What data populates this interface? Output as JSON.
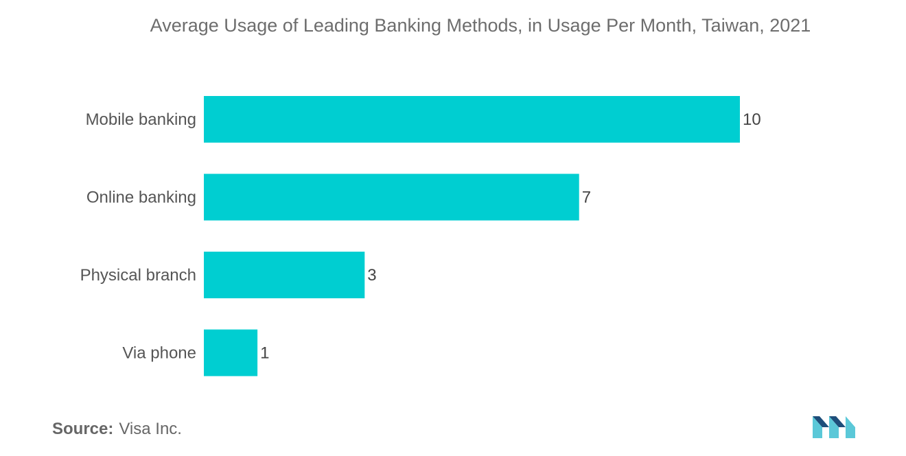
{
  "chart_data": {
    "type": "bar",
    "orientation": "horizontal",
    "title": "Average Usage of Leading Banking Methods, in Usage Per Month, Taiwan, 2021",
    "categories": [
      "Mobile banking",
      "Online banking",
      "Physical branch",
      "Via phone"
    ],
    "values": [
      10,
      7,
      3,
      1
    ],
    "xlim": [
      0,
      10
    ],
    "grid": false,
    "legend": "none",
    "bar_color": "#00CED1"
  },
  "source": {
    "label": "Source:",
    "value": "Visa Inc."
  },
  "logo": {
    "icon": "mordor-intelligence-logo-icon",
    "color_light": "#5BC8D8",
    "color_dark": "#1E4E7A"
  }
}
